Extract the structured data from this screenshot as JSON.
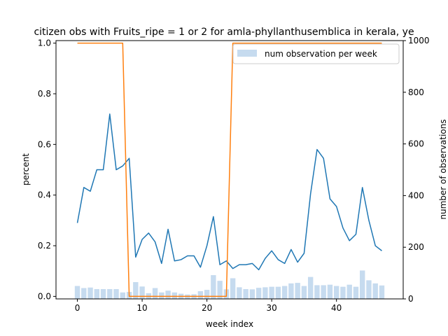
{
  "chart_data": {
    "type": "bar+line",
    "title": "citizen obs with Fruits_ripe = 1 or 2 for amla-phyllanthusemblica in kerala, ye",
    "xlabel": "week index",
    "ylabel_left": "percent",
    "ylabel_right": "number of observations",
    "xlim": [
      -3.3,
      50.3
    ],
    "ylim_left": [
      -0.01,
      1.01
    ],
    "ylim_right": [
      0,
      1000
    ],
    "xticks": [
      0,
      10,
      20,
      30,
      40
    ],
    "xtick_labels": [
      "0",
      "10",
      "20",
      "30",
      "40"
    ],
    "yticks_left": [
      0.0,
      0.2,
      0.4,
      0.6,
      0.8,
      1.0
    ],
    "ytick_labels_left": [
      "0.0",
      "0.2",
      "0.4",
      "0.6",
      "0.8",
      "1.0"
    ],
    "yticks_right": [
      0,
      200,
      400,
      600,
      800,
      1000
    ],
    "ytick_labels_right": [
      "0",
      "200",
      "400",
      "600",
      "800",
      "1000"
    ],
    "legend": {
      "placement": "top-right",
      "label": "num observation per week"
    },
    "grid": false,
    "colors": {
      "percent_line": "#1f77b4",
      "binary_line": "#ff7f0e",
      "bars": "#c6dbef"
    },
    "x": [
      0,
      1,
      2,
      3,
      4,
      5,
      6,
      7,
      8,
      9,
      10,
      11,
      12,
      13,
      14,
      15,
      16,
      17,
      18,
      19,
      20,
      21,
      22,
      23,
      24,
      25,
      26,
      27,
      28,
      29,
      30,
      31,
      32,
      33,
      34,
      35,
      36,
      37,
      38,
      39,
      40,
      41,
      42,
      43,
      44,
      45,
      46,
      47
    ],
    "series": [
      {
        "name": "num observation per week",
        "kind": "bar",
        "axis": "right",
        "values": [
          50,
          42,
          44,
          38,
          38,
          38,
          38,
          25,
          27,
          65,
          48,
          22,
          42,
          25,
          32,
          25,
          20,
          17,
          18,
          30,
          35,
          92,
          70,
          37,
          80,
          45,
          38,
          37,
          43,
          45,
          47,
          47,
          50,
          60,
          62,
          50,
          85,
          53,
          53,
          55,
          50,
          47,
          55,
          47,
          110,
          72,
          60,
          52
        ]
      },
      {
        "kind": "line",
        "axis": "left",
        "values": [
          0.29,
          0.43,
          0.415,
          0.5,
          0.5,
          0.72,
          0.5,
          0.515,
          0.545,
          0.155,
          0.225,
          0.25,
          0.215,
          0.13,
          0.265,
          0.14,
          0.145,
          0.16,
          0.16,
          0.115,
          0.2,
          0.315,
          0.125,
          0.14,
          0.11,
          0.125,
          0.125,
          0.13,
          0.105,
          0.15,
          0.18,
          0.145,
          0.13,
          0.185,
          0.135,
          0.17,
          0.405,
          0.58,
          0.545,
          0.385,
          0.355,
          0.27,
          0.22,
          0.245,
          0.43,
          0.3,
          0.2,
          0.18
        ]
      },
      {
        "kind": "line",
        "axis": "left",
        "values": [
          1,
          1,
          1,
          1,
          1,
          1,
          1,
          1,
          0,
          0,
          0,
          0,
          0,
          0,
          0,
          0,
          0,
          0,
          0,
          0,
          0,
          0,
          0,
          0,
          1,
          1,
          1,
          1,
          1,
          1,
          1,
          1,
          1,
          1,
          1,
          1,
          1,
          1,
          1,
          1,
          1,
          1,
          1,
          1,
          1,
          1,
          1,
          1
        ]
      }
    ]
  }
}
